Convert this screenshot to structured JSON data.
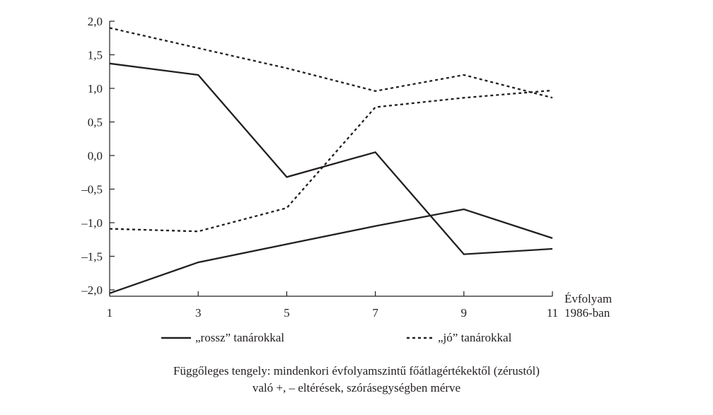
{
  "chart_data": {
    "type": "line",
    "x": [
      1,
      3,
      5,
      7,
      9,
      11
    ],
    "x_tick_labels": [
      "1",
      "3",
      "5",
      "7",
      "9",
      "11"
    ],
    "xlabel": [
      "Évfolyam",
      "1986-ban"
    ],
    "ylim": [
      -2.0,
      2.0
    ],
    "y_ticks": [
      2.0,
      1.5,
      1.0,
      0.5,
      0.0,
      -0.5,
      -1.0,
      -1.5,
      -2.0
    ],
    "y_tick_labels": [
      "2,0",
      "1,5",
      "1,0",
      "0,5",
      "0,0",
      "–0,5",
      "–1,0",
      "–1,5",
      "–2,0"
    ],
    "grid": false,
    "legend_placement": "bottom",
    "series": [
      {
        "name": "„rossz” tanárokkal",
        "style": "solid",
        "values": [
          1.37,
          1.2,
          -0.32,
          0.05,
          -1.47,
          -1.39
        ]
      },
      {
        "name": "„rossz” tanárokkal",
        "style": "solid",
        "values": [
          -2.05,
          -1.59,
          -1.32,
          -1.05,
          -0.8,
          -1.23
        ]
      },
      {
        "name": "„jó” tanárokkal",
        "style": "dashed",
        "values": [
          1.9,
          1.6,
          1.3,
          0.96,
          1.2,
          0.86
        ]
      },
      {
        "name": "„jó” tanárokkal",
        "style": "dashed",
        "values": [
          -1.09,
          -1.13,
          -0.78,
          0.72,
          0.86,
          0.97
        ]
      }
    ]
  },
  "legend": {
    "bad_label": "„rossz” tanárokkal",
    "good_label": "„jó” tanárokkal"
  },
  "caption": {
    "line1": "Függőleges tengely: mindenkori évfolyamszintű főátlagértékektől (zérustól)",
    "line2": "való +, – eltérések, szórásegységben mérve"
  }
}
